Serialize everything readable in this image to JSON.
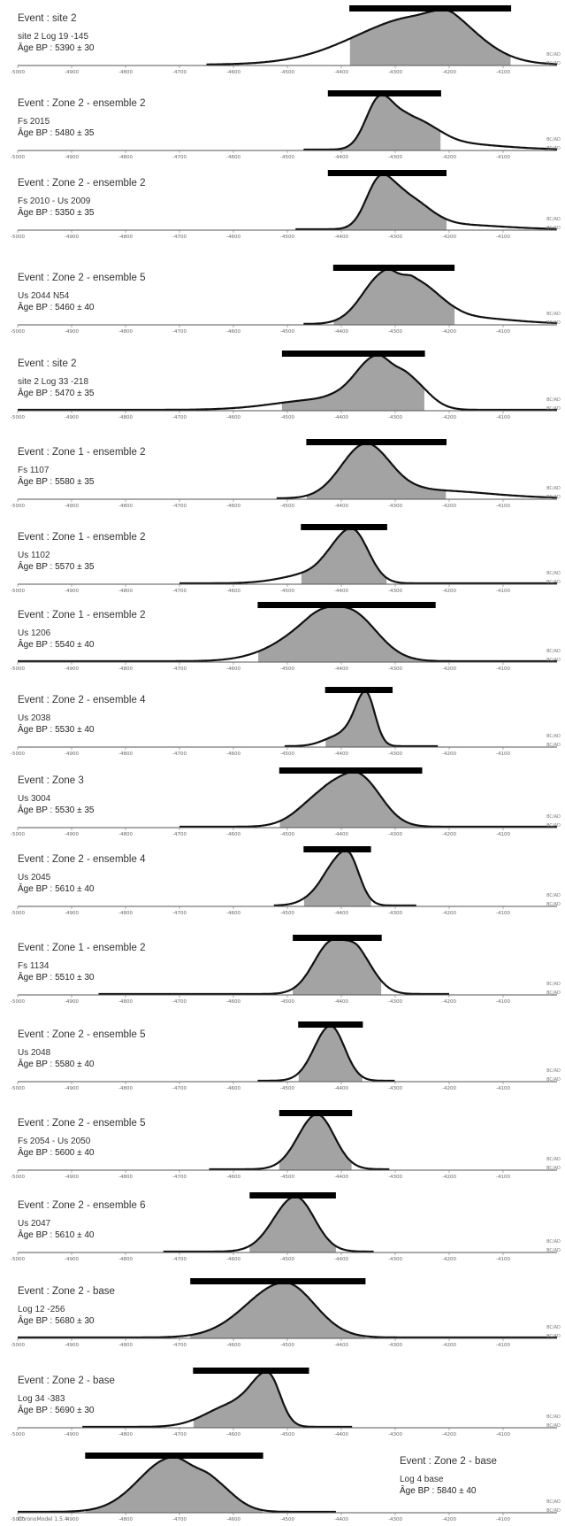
{
  "axis": {
    "xlim": [
      -5000,
      -4000
    ],
    "ticks": [
      -5000,
      -4900,
      -4800,
      -4700,
      -4600,
      -4500,
      -4400,
      -4300,
      -4200,
      -4100
    ],
    "unit_label": "BC/AD"
  },
  "footer": "ChronoModel 1.5.4",
  "chart_data": [
    {
      "type": "area",
      "title": "Event : site 2",
      "subtitle": "site 2 Log 19 -145",
      "age": "Âge BP : 5390 ± 30",
      "hpd": [
        -4385,
        -4085
      ],
      "density_range": [
        -4650,
        -4000
      ],
      "peaks": [
        {
          "x": -4250,
          "h": 1.0,
          "sl": 120,
          "sr": 70
        },
        {
          "x": -4190,
          "h": 0.35,
          "sl": 30,
          "sr": 70
        }
      ]
    },
    {
      "type": "area",
      "title": "Event : Zone 2 - ensemble 2",
      "subtitle": "Fs 2015",
      "age": "Âge BP : 5480 ± 35",
      "hpd": [
        -4425,
        -4215
      ],
      "density_range": [
        -4470,
        -4000
      ],
      "peaks": [
        {
          "x": -4330,
          "h": 0.95,
          "sl": 25,
          "sr": 25
        },
        {
          "x": -4275,
          "h": 0.6,
          "sl": 30,
          "sr": 45
        },
        {
          "x": -4200,
          "h": 0.12,
          "sl": 40,
          "sr": 90
        }
      ]
    },
    {
      "type": "area",
      "title": "Event : Zone 2 - ensemble 2",
      "subtitle": "Fs 2010 - Us 2009",
      "age": "Âge BP : 5350 ± 35",
      "hpd": [
        -4425,
        -4205
      ],
      "density_range": [
        -4485,
        -4000
      ],
      "peaks": [
        {
          "x": -4330,
          "h": 0.95,
          "sl": 25,
          "sr": 25
        },
        {
          "x": -4280,
          "h": 0.65,
          "sl": 30,
          "sr": 40
        },
        {
          "x": -4200,
          "h": 0.1,
          "sl": 40,
          "sr": 90
        }
      ]
    },
    {
      "type": "area",
      "title": "Event :  Zone 2 - ensemble 5",
      "subtitle": "Us 2044 N54",
      "age": "Âge BP : 5460 ± 40",
      "hpd": [
        -4415,
        -4190
      ],
      "density_range": [
        -4470,
        -4000
      ],
      "peaks": [
        {
          "x": -4320,
          "h": 0.9,
          "sl": 40,
          "sr": 25
        },
        {
          "x": -4265,
          "h": 0.75,
          "sl": 25,
          "sr": 45
        },
        {
          "x": -4180,
          "h": 0.12,
          "sl": 40,
          "sr": 90
        }
      ]
    },
    {
      "type": "area",
      "title": "Event : site 2",
      "subtitle": "site 2 Log 33 -218",
      "age": "Âge BP : 5470 ± 35",
      "hpd": [
        -4510,
        -4245
      ],
      "density_range": [
        -5000,
        -4000
      ],
      "peaks": [
        {
          "x": -4335,
          "h": 0.9,
          "sl": 40,
          "sr": 30
        },
        {
          "x": -4275,
          "h": 0.5,
          "sl": 25,
          "sr": 35
        },
        {
          "x": -4430,
          "h": 0.18,
          "sl": 90,
          "sr": 40
        }
      ]
    },
    {
      "type": "area",
      "title": "Event : Zone 1 - ensemble 2",
      "subtitle": "Fs 1107",
      "age": "Âge BP : 5580 ± 35",
      "hpd": [
        -4465,
        -4205
      ],
      "density_range": [
        -4520,
        -4000
      ],
      "peaks": [
        {
          "x": -4355,
          "h": 1.0,
          "sl": 45,
          "sr": 45
        },
        {
          "x": -4240,
          "h": 0.15,
          "sl": 60,
          "sr": 110
        }
      ]
    },
    {
      "type": "area",
      "title": "Event : Zone 1 - ensemble 2",
      "subtitle": "Us 1102",
      "age": "Âge BP : 5570 ± 35",
      "hpd": [
        -4475,
        -4315
      ],
      "density_range": [
        -4700,
        -4000
      ],
      "peaks": [
        {
          "x": -4380,
          "h": 1.0,
          "sl": 35,
          "sr": 30
        },
        {
          "x": -4440,
          "h": 0.2,
          "sl": 60,
          "sr": 30
        }
      ]
    },
    {
      "type": "area",
      "title": "Event : Zone 1 - ensemble 2",
      "subtitle": "Us 1206",
      "age": "Âge BP : 5540 ± 40",
      "hpd": [
        -4555,
        -4225
      ],
      "density_range": [
        -5000,
        -4000
      ],
      "peaks": [
        {
          "x": -4385,
          "h": 0.9,
          "sl": 60,
          "sr": 50
        },
        {
          "x": -4460,
          "h": 0.4,
          "sl": 70,
          "sr": 40
        }
      ]
    },
    {
      "type": "area",
      "title": "Event : Zone 2 - ensemble 4",
      "subtitle": "Us 2038",
      "age": "Âge BP : 5530 ± 40",
      "hpd": [
        -4430,
        -4305
      ],
      "density_range": [
        -4505,
        -4220
      ],
      "peaks": [
        {
          "x": -4355,
          "h": 1.0,
          "sl": 20,
          "sr": 17
        },
        {
          "x": -4400,
          "h": 0.2,
          "sl": 30,
          "sr": 20
        }
      ]
    },
    {
      "type": "area",
      "title": "Event : Zone 3",
      "subtitle": "Us 3004",
      "age": "Âge BP : 5530 ± 35",
      "hpd": [
        -4515,
        -4250
      ],
      "density_range": [
        -4700,
        -4000
      ],
      "peaks": [
        {
          "x": -4365,
          "h": 0.95,
          "sl": 35,
          "sr": 40
        },
        {
          "x": -4430,
          "h": 0.65,
          "sl": 45,
          "sr": 35
        }
      ]
    },
    {
      "type": "area",
      "title": "Event : Zone 2 - ensemble 4",
      "subtitle": "Us 2045",
      "age": "Âge BP : 5610 ± 40",
      "hpd": [
        -4470,
        -4345
      ],
      "density_range": [
        -4525,
        -4260
      ],
      "peaks": [
        {
          "x": -4390,
          "h": 1.0,
          "sl": 30,
          "sr": 22
        },
        {
          "x": -4435,
          "h": 0.2,
          "sl": 30,
          "sr": 20
        }
      ]
    },
    {
      "type": "area",
      "title": "Event : Zone 1 - ensemble 2",
      "subtitle": "Fs 1134",
      "age": "Âge BP : 5510 ± 30",
      "hpd": [
        -4490,
        -4325
      ],
      "density_range": [
        -4850,
        -4200
      ],
      "peaks": [
        {
          "x": -4415,
          "h": 0.9,
          "sl": 35,
          "sr": 40
        },
        {
          "x": -4365,
          "h": 0.35,
          "sl": 20,
          "sr": 30
        }
      ]
    },
    {
      "type": "area",
      "title": "Event : Zone 2 - ensemble 5",
      "subtitle": "Us 2048",
      "age": "Âge BP : 5580 ± 40",
      "hpd": [
        -4480,
        -4360
      ],
      "density_range": [
        -4555,
        -4300
      ],
      "peaks": [
        {
          "x": -4420,
          "h": 1.0,
          "sl": 30,
          "sr": 26
        }
      ]
    },
    {
      "type": "area",
      "title": "Event : Zone 2 - ensemble 5",
      "subtitle": "Fs 2054 - Us 2050",
      "age": "Âge BP : 5600 ± 40",
      "hpd": [
        -4515,
        -4380
      ],
      "density_range": [
        -4645,
        -4310
      ],
      "peaks": [
        {
          "x": -4445,
          "h": 1.0,
          "sl": 35,
          "sr": 32
        }
      ]
    },
    {
      "type": "area",
      "title": "Event : Zone 2 - ensemble 6",
      "subtitle": "Us 2047",
      "age": "Âge BP : 5610 ± 40",
      "hpd": [
        -4570,
        -4410
      ],
      "density_range": [
        -4730,
        -4340
      ],
      "peaks": [
        {
          "x": -4485,
          "h": 1.0,
          "sl": 40,
          "sr": 35
        }
      ]
    },
    {
      "type": "area",
      "title": "Event : Zone 2 - base",
      "subtitle": "Log 12 -256",
      "age": "Âge BP : 5680 ± 30",
      "hpd": [
        -4680,
        -4355
      ],
      "density_range": [
        -5000,
        -4000
      ],
      "peaks": [
        {
          "x": -4505,
          "h": 1.0,
          "sl": 70,
          "sr": 55
        }
      ]
    },
    {
      "type": "area",
      "title": "Event : Zone 2 - base",
      "subtitle": "Log 34 -383",
      "age": "Âge BP : 5690 ± 30",
      "hpd": [
        -4675,
        -4460
      ],
      "density_range": [
        -4880,
        -4380
      ],
      "peaks": [
        {
          "x": -4535,
          "h": 1.0,
          "sl": 30,
          "sr": 22
        },
        {
          "x": -4600,
          "h": 0.45,
          "sl": 50,
          "sr": 40
        }
      ]
    },
    {
      "type": "area",
      "title": "Event : Zone 2 - base",
      "subtitle": "Log 4 base",
      "age": "Âge BP : 5840 ± 40",
      "hpd": [
        -4875,
        -4545
      ],
      "density_range": [
        -5000,
        -4410
      ],
      "peaks": [
        {
          "x": -4715,
          "h": 1.0,
          "sl": 60,
          "sr": 40
        },
        {
          "x": -4640,
          "h": 0.5,
          "sl": 30,
          "sr": 40
        }
      ]
    }
  ]
}
